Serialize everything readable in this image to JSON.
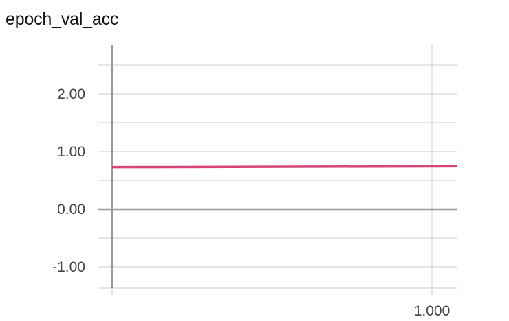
{
  "chart_data": {
    "type": "line",
    "title": "epoch_val_acc",
    "xlabel": "",
    "ylabel": "",
    "xlim": [
      0,
      1.08
    ],
    "ylim": [
      -1.4,
      2.8
    ],
    "y_ticks": [
      -1.0,
      0.0,
      1.0,
      2.0
    ],
    "y_tick_labels": [
      "-1.00",
      "0.00",
      "1.00",
      "2.00"
    ],
    "y_minor_grid": [
      -0.5,
      0.5,
      1.5,
      2.5
    ],
    "x_ticks": [
      0,
      1
    ],
    "x_tick_labels": [
      "",
      "1.000"
    ],
    "grid": true,
    "series": [
      {
        "x": [
          0,
          1.08
        ],
        "y": [
          0.73,
          0.745
        ],
        "color": "#d6457a"
      }
    ]
  }
}
